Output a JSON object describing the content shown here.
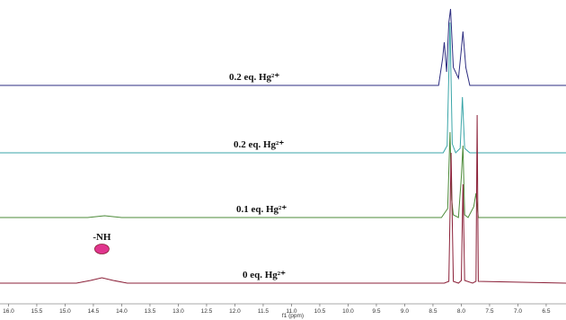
{
  "chart_data": {
    "type": "line",
    "x_label": "f1 (ppm)",
    "xlim": [
      16.15,
      6.15
    ],
    "xticks": [
      {
        "value": 16,
        "label": "16.0"
      },
      15.5,
      {
        "value": 15,
        "label": "15.0"
      },
      14.5,
      {
        "value": 14,
        "label": "14.0"
      },
      13.5,
      {
        "value": 13,
        "label": "13.0"
      },
      12.5,
      {
        "value": 12,
        "label": "12.0"
      },
      11.5,
      {
        "value": 11,
        "label": "11.0"
      },
      10.5,
      {
        "value": 10,
        "label": "10.0"
      },
      9.5,
      {
        "value": 9,
        "label": "9.0"
      },
      8.5,
      {
        "value": 8,
        "label": "8.0"
      },
      7.5,
      {
        "value": 7,
        "label": "7.0"
      },
      6.5
    ],
    "annotation": "-NH",
    "annotation_x": 14.35,
    "series": [
      {
        "name": "0.2 eq. Hg²⁺",
        "color": "#2d2d80",
        "x": [
          16.15,
          8.4,
          8.33,
          8.3,
          8.26,
          8.22,
          8.19,
          8.14,
          8.05,
          8.0,
          7.97,
          7.92,
          7.85,
          6.15
        ],
        "values": [
          0,
          0,
          30,
          48,
          15,
          70,
          85,
          20,
          8,
          40,
          60,
          20,
          0,
          0
        ]
      },
      {
        "name": "0.2 eq. Hg²⁺",
        "color": "#3aa5a8",
        "x": [
          16.15,
          8.32,
          8.25,
          8.2,
          8.16,
          8.1,
          8.02,
          7.98,
          7.94,
          7.85,
          6.15
        ],
        "values": [
          0,
          0,
          8,
          145,
          10,
          0,
          5,
          62,
          5,
          0,
          0
        ]
      },
      {
        "name": "0.1 eq. Hg²⁺",
        "color": "#4d8b3a",
        "x": [
          16.15,
          14.6,
          14.3,
          14.0,
          8.35,
          8.24,
          8.2,
          8.17,
          8.14,
          8.05,
          8.0,
          7.97,
          7.94,
          7.88,
          7.78,
          7.74,
          7.7,
          6.15
        ],
        "values": [
          0,
          0,
          2,
          0,
          0,
          10,
          95,
          20,
          3,
          0,
          45,
          80,
          3,
          0,
          12,
          27,
          0,
          0
        ]
      },
      {
        "name": "0 eq. Hg²⁺",
        "color": "#8b2038",
        "x": [
          16.15,
          14.8,
          14.55,
          14.35,
          14.15,
          13.9,
          8.3,
          8.22,
          8.18,
          8.14,
          8.05,
          8.0,
          7.97,
          7.94,
          7.8,
          7.74,
          7.72,
          7.7,
          6.15
        ],
        "values": [
          0,
          0,
          3,
          6,
          3,
          0,
          0,
          2,
          145,
          2,
          0,
          3,
          110,
          3,
          0,
          2,
          187,
          2,
          0
        ]
      }
    ]
  }
}
